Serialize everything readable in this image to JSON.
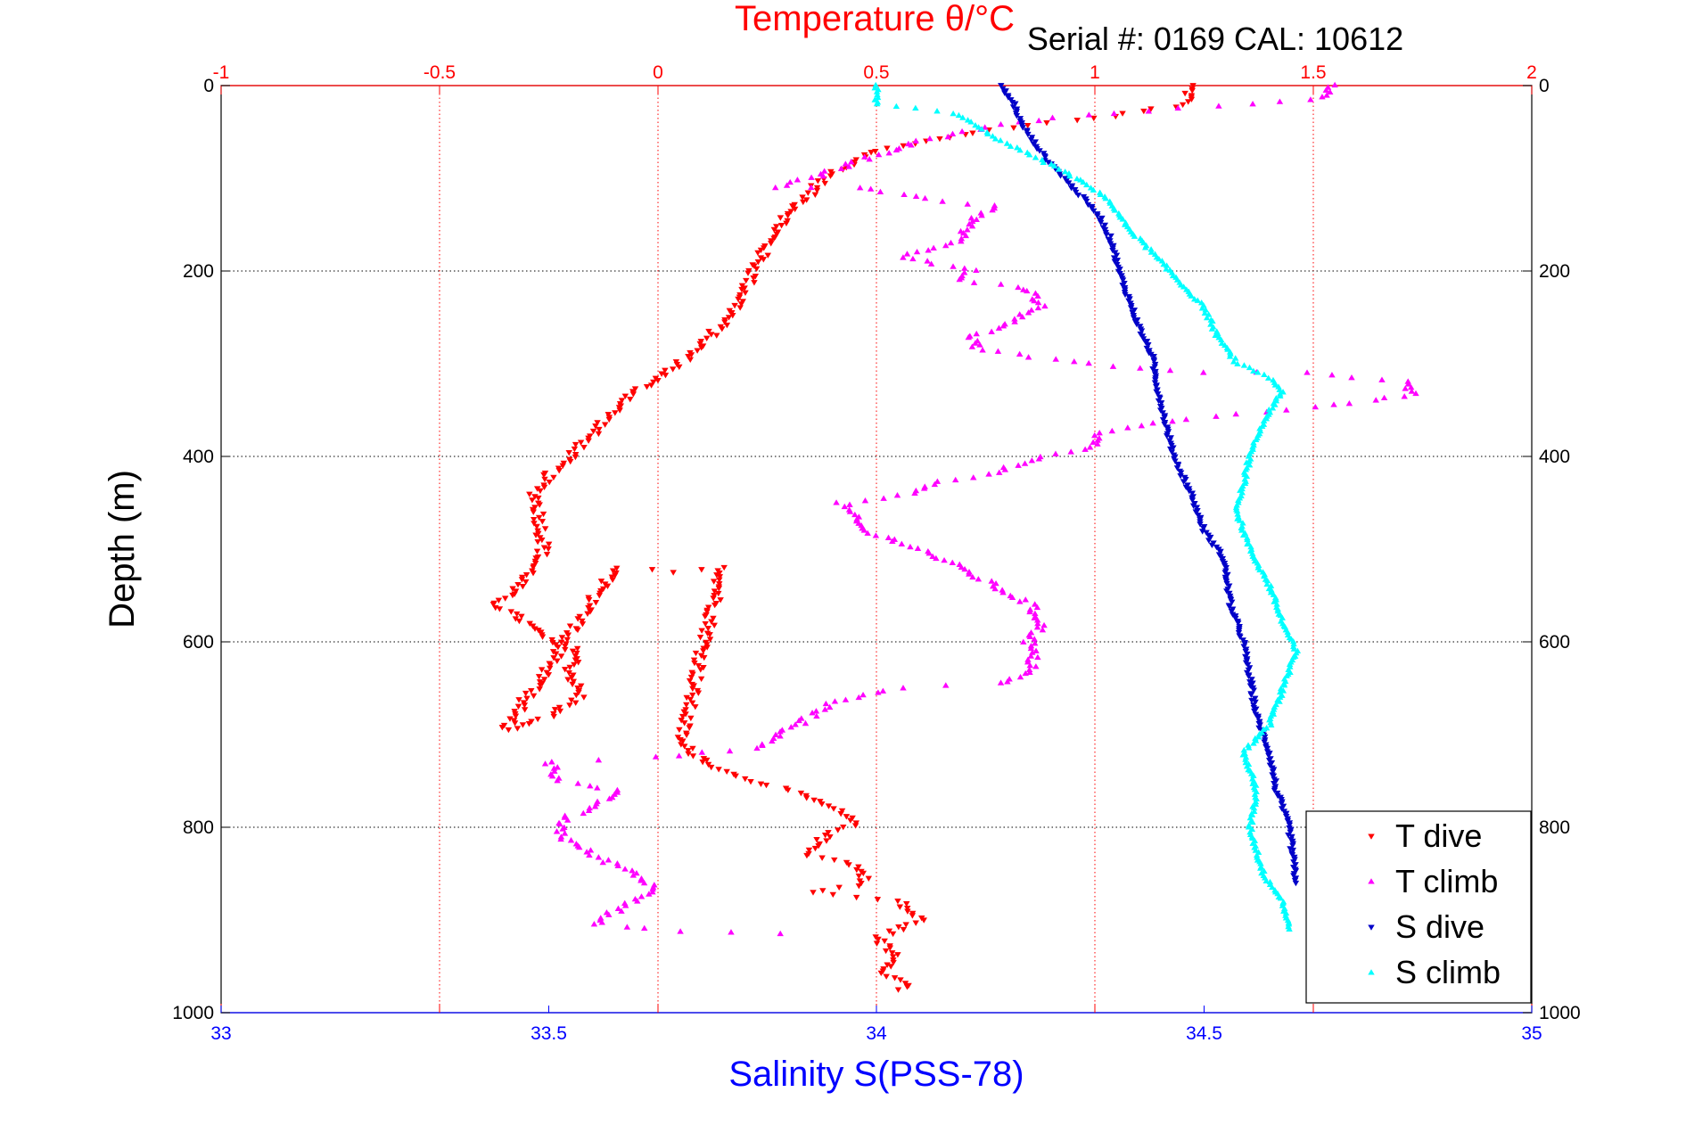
{
  "serial_label": "Serial #: 0169 CAL: 10612",
  "colors": {
    "temperature_axis": "#ff0000",
    "salinity_axis": "#0000ff",
    "t_dive": "#ff0000",
    "t_climb": "#ff00ff",
    "s_dive": "#0000c8",
    "s_climb": "#00ffff"
  },
  "chart_data": {
    "type": "scatter",
    "title": "Temperature θ/°C",
    "xlabel": "Salinity S(PSS-78)",
    "ylabel": "Depth (m)",
    "x_top": {
      "label": "Temperature θ/°C",
      "range": [
        -1,
        2
      ],
      "ticks": [
        "-1",
        "-0.5",
        "0",
        "0.5",
        "1",
        "1.5",
        "2"
      ]
    },
    "x_bottom": {
      "label": "Salinity S(PSS-78)",
      "range": [
        33,
        35
      ],
      "ticks": [
        "33",
        "33.5",
        "34",
        "34.5",
        "35"
      ]
    },
    "y": {
      "label": "Depth (m)",
      "range": [
        0,
        1000
      ],
      "inverted": true,
      "ticks": [
        "0",
        "200",
        "400",
        "600",
        "800",
        "1000"
      ]
    },
    "grid": true,
    "legend_position": "bottom-right",
    "series": [
      {
        "name": "T dive",
        "axis": "temperature",
        "marker": "triangle-down",
        "points": [
          [
            1.22,
            0
          ],
          [
            1.21,
            20
          ],
          [
            1.0,
            35
          ],
          [
            0.75,
            48
          ],
          [
            0.5,
            70
          ],
          [
            0.38,
            100
          ],
          [
            0.32,
            130
          ],
          [
            0.28,
            150
          ],
          [
            0.24,
            180
          ],
          [
            0.21,
            210
          ],
          [
            0.18,
            240
          ],
          [
            0.12,
            270
          ],
          [
            0.05,
            300
          ],
          [
            -0.05,
            330
          ],
          [
            -0.12,
            360
          ],
          [
            -0.18,
            390
          ],
          [
            -0.25,
            420
          ],
          [
            -0.28,
            440
          ],
          [
            -0.27,
            470
          ],
          [
            -0.26,
            500
          ],
          [
            -0.3,
            530
          ],
          [
            -0.37,
            560
          ],
          [
            -0.3,
            580
          ],
          [
            -0.25,
            600
          ],
          [
            -0.18,
            610
          ],
          [
            -0.2,
            630
          ],
          [
            -0.18,
            660
          ],
          [
            -0.25,
            680
          ],
          [
            -0.35,
            695
          ],
          [
            -0.1,
            520
          ],
          [
            0.05,
            525
          ],
          [
            0.15,
            520
          ],
          [
            0.05,
            710
          ],
          [
            0.15,
            740
          ],
          [
            0.3,
            760
          ],
          [
            0.4,
            780
          ],
          [
            0.45,
            795
          ],
          [
            0.38,
            810
          ],
          [
            0.35,
            830
          ],
          [
            0.45,
            840
          ],
          [
            0.48,
            860
          ],
          [
            0.35,
            870
          ],
          [
            0.55,
            880
          ],
          [
            0.6,
            900
          ],
          [
            0.5,
            920
          ],
          [
            0.55,
            940
          ],
          [
            0.52,
            960
          ],
          [
            0.58,
            970
          ],
          [
            0.55,
            975
          ]
        ]
      },
      {
        "name": "T climb",
        "axis": "temperature",
        "marker": "triangle-up",
        "points": [
          [
            1.55,
            0
          ],
          [
            1.5,
            15
          ],
          [
            1.2,
            25
          ],
          [
            0.9,
            35
          ],
          [
            0.75,
            45
          ],
          [
            0.6,
            60
          ],
          [
            0.5,
            75
          ],
          [
            0.35,
            100
          ],
          [
            0.28,
            110
          ],
          [
            0.45,
            110
          ],
          [
            0.65,
            125
          ],
          [
            0.78,
            130
          ],
          [
            0.72,
            145
          ],
          [
            0.68,
            170
          ],
          [
            0.55,
            185
          ],
          [
            0.72,
            200
          ],
          [
            0.7,
            210
          ],
          [
            0.85,
            220
          ],
          [
            0.88,
            235
          ],
          [
            0.82,
            255
          ],
          [
            0.72,
            270
          ],
          [
            0.73,
            285
          ],
          [
            0.98,
            300
          ],
          [
            1.25,
            310
          ],
          [
            1.48,
            310
          ],
          [
            1.72,
            320
          ],
          [
            1.72,
            335
          ],
          [
            1.45,
            350
          ],
          [
            1.2,
            360
          ],
          [
            1.0,
            375
          ],
          [
            1.0,
            390
          ],
          [
            0.88,
            400
          ],
          [
            0.75,
            420
          ],
          [
            0.62,
            430
          ],
          [
            0.6,
            440
          ],
          [
            0.42,
            450
          ],
          [
            0.47,
            480
          ],
          [
            0.6,
            500
          ],
          [
            0.73,
            530
          ],
          [
            0.85,
            560
          ],
          [
            0.88,
            580
          ],
          [
            0.85,
            600
          ],
          [
            0.86,
            630
          ],
          [
            0.78,
            645
          ],
          [
            0.55,
            650
          ],
          [
            0.4,
            665
          ],
          [
            0.35,
            680
          ],
          [
            0.28,
            700
          ],
          [
            0.22,
            715
          ],
          [
            0.0,
            725
          ],
          [
            -0.25,
            730
          ],
          [
            -0.22,
            750
          ],
          [
            -0.1,
            760
          ],
          [
            -0.15,
            780
          ],
          [
            -0.22,
            790
          ],
          [
            -0.22,
            810
          ],
          [
            -0.15,
            830
          ],
          [
            -0.05,
            850
          ],
          [
            0.0,
            870
          ],
          [
            -0.05,
            880
          ],
          [
            -0.12,
            895
          ],
          [
            -0.15,
            905
          ],
          [
            0.05,
            912
          ],
          [
            0.28,
            915
          ]
        ]
      },
      {
        "name": "S dive",
        "axis": "salinity",
        "marker": "triangle-down",
        "points": [
          [
            34.19,
            0
          ],
          [
            34.21,
            20
          ],
          [
            34.22,
            40
          ],
          [
            34.26,
            80
          ],
          [
            34.3,
            110
          ],
          [
            34.34,
            140
          ],
          [
            34.36,
            170
          ],
          [
            34.37,
            200
          ],
          [
            34.38,
            220
          ],
          [
            34.4,
            260
          ],
          [
            34.42,
            290
          ],
          [
            34.43,
            330
          ],
          [
            34.44,
            360
          ],
          [
            34.45,
            390
          ],
          [
            34.46,
            410
          ],
          [
            34.48,
            440
          ],
          [
            34.5,
            480
          ],
          [
            34.53,
            510
          ],
          [
            34.54,
            560
          ],
          [
            34.56,
            600
          ],
          [
            34.57,
            640
          ],
          [
            34.58,
            680
          ],
          [
            34.6,
            720
          ],
          [
            34.61,
            760
          ],
          [
            34.63,
            800
          ],
          [
            34.64,
            860
          ]
        ]
      },
      {
        "name": "S climb",
        "axis": "salinity",
        "marker": "triangle-up",
        "points": [
          [
            34.0,
            0
          ],
          [
            34.0,
            20
          ],
          [
            34.12,
            30
          ],
          [
            34.19,
            60
          ],
          [
            34.28,
            90
          ],
          [
            34.35,
            120
          ],
          [
            34.38,
            150
          ],
          [
            34.42,
            180
          ],
          [
            34.46,
            210
          ],
          [
            34.5,
            240
          ],
          [
            34.52,
            270
          ],
          [
            34.55,
            300
          ],
          [
            34.6,
            315
          ],
          [
            34.62,
            330
          ],
          [
            34.6,
            350
          ],
          [
            34.58,
            380
          ],
          [
            34.57,
            400
          ],
          [
            34.56,
            430
          ],
          [
            34.55,
            460
          ],
          [
            34.57,
            500
          ],
          [
            34.6,
            540
          ],
          [
            34.62,
            580
          ],
          [
            34.64,
            610
          ],
          [
            34.62,
            650
          ],
          [
            34.6,
            690
          ],
          [
            34.56,
            720
          ],
          [
            34.58,
            760
          ],
          [
            34.57,
            800
          ],
          [
            34.59,
            850
          ],
          [
            34.62,
            880
          ],
          [
            34.63,
            910
          ]
        ]
      }
    ]
  }
}
